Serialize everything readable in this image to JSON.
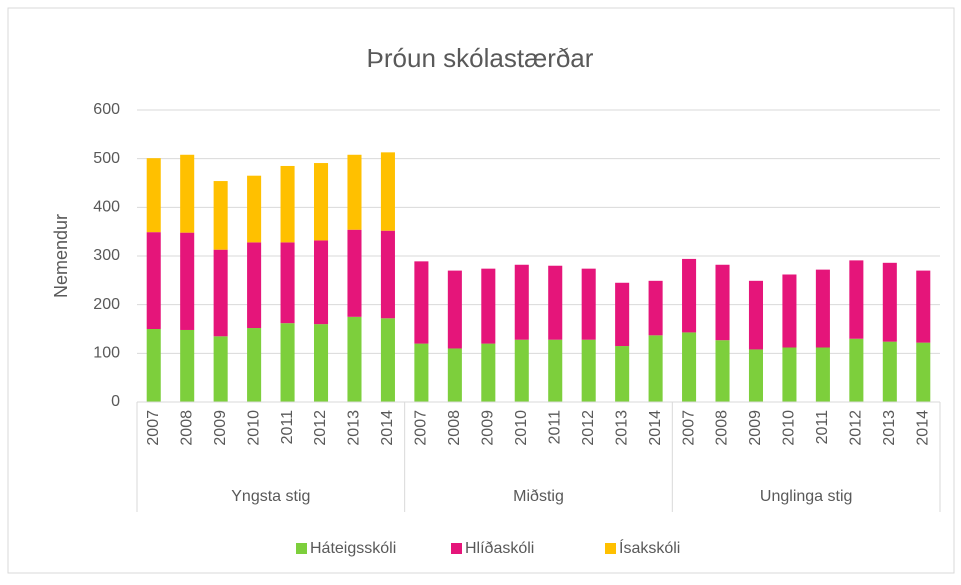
{
  "chart_data": {
    "type": "stacked_bar",
    "title": "Þróun skólastærðar",
    "y_label": "Nemendur",
    "categories": [
      "2007",
      "2008",
      "2009",
      "2010",
      "2011",
      "2012",
      "2013",
      "2014",
      "2007",
      "2008",
      "2009",
      "2010",
      "2011",
      "2012",
      "2013",
      "2014",
      "2007",
      "2008",
      "2009",
      "2010",
      "2011",
      "2012",
      "2013",
      "2014"
    ],
    "group_labels": [
      "Yngsta stig",
      "Miðstig",
      "Unglinga stig"
    ],
    "series": [
      {
        "name": "Háteigsskóli",
        "color": "#7dcf3c",
        "values": [
          150,
          148,
          135,
          152,
          162,
          160,
          175,
          172,
          120,
          110,
          120,
          128,
          128,
          128,
          115,
          137,
          143,
          127,
          108,
          112,
          112,
          130,
          124,
          122
        ]
      },
      {
        "name": "Hlíðaskóli",
        "color": "#e5157a",
        "values": [
          199,
          200,
          178,
          176,
          166,
          172,
          179,
          180,
          169,
          160,
          154,
          154,
          152,
          146,
          130,
          112,
          151,
          155,
          141,
          150,
          160,
          161,
          162,
          148
        ]
      },
      {
        "name": "Ísakskóli",
        "color": "#ffc000",
        "values": [
          152,
          160,
          141,
          137,
          157,
          159,
          154,
          161,
          null,
          null,
          null,
          null,
          null,
          null,
          null,
          null,
          null,
          null,
          null,
          null,
          null,
          null,
          null,
          null
        ]
      }
    ],
    "ylim": [
      0,
      600
    ],
    "yticks": [
      0,
      100,
      200,
      300,
      400,
      500,
      600
    ],
    "grid": true,
    "legend": "bottom"
  }
}
